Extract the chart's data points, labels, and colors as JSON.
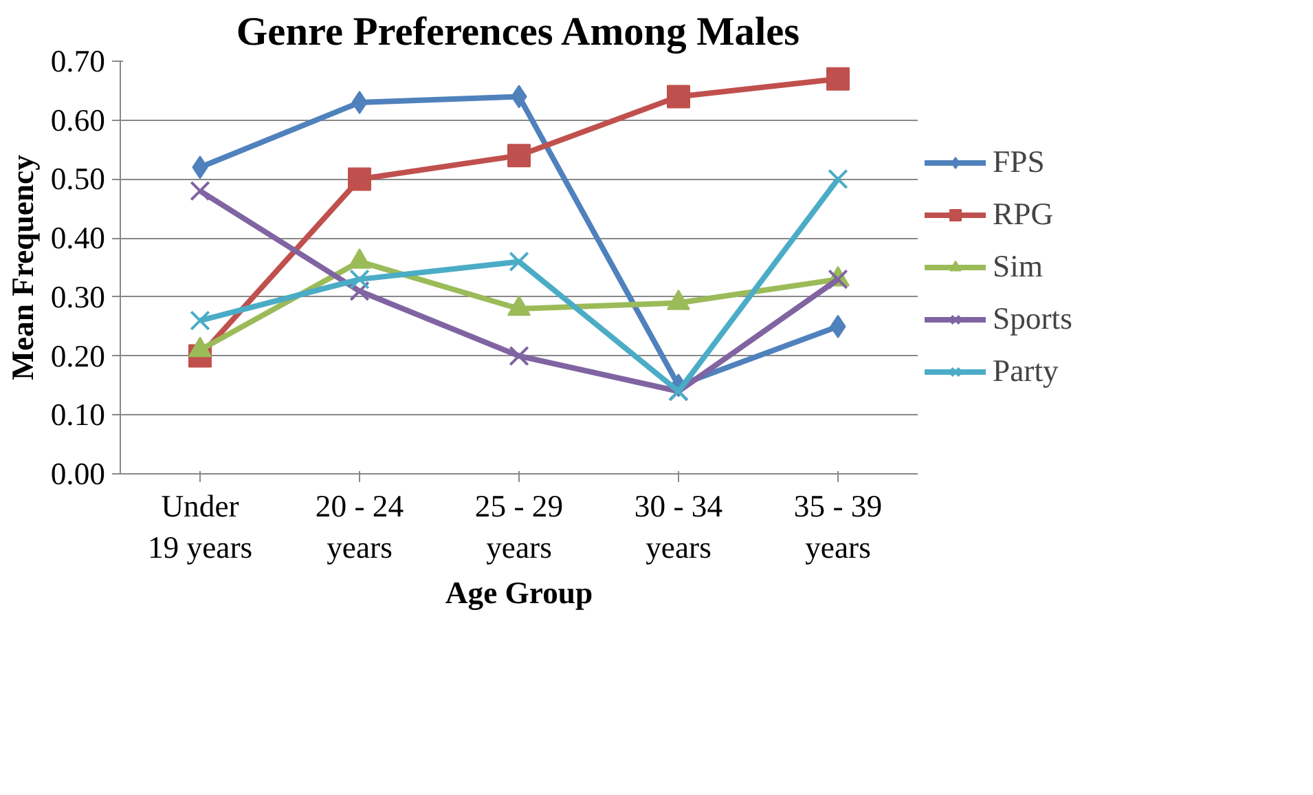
{
  "chart_data": {
    "type": "line",
    "title": "Genre Preferences Among Males",
    "xlabel": "Age Group",
    "ylabel": "Mean Frequency",
    "categories": [
      "Under\n19 years",
      "20 - 24\nyears",
      "25 - 29\nyears",
      "30 - 34\nyears",
      "35 - 39\nyears"
    ],
    "series": [
      {
        "name": "FPS",
        "color": "#4f81bd",
        "marker": "diamond",
        "values": [
          0.52,
          0.63,
          0.64,
          0.15,
          0.25
        ]
      },
      {
        "name": "RPG",
        "color": "#c0504d",
        "marker": "square",
        "values": [
          0.2,
          0.5,
          0.54,
          0.64,
          0.67
        ]
      },
      {
        "name": "Sim",
        "color": "#9bbb59",
        "marker": "triangle",
        "values": [
          0.21,
          0.36,
          0.28,
          0.29,
          0.33
        ]
      },
      {
        "name": "Sports",
        "color": "#8064a2",
        "marker": "cross",
        "values": [
          0.48,
          0.31,
          0.2,
          0.14,
          0.33
        ]
      },
      {
        "name": "Party",
        "color": "#4bacc6",
        "marker": "cross",
        "values": [
          0.26,
          0.33,
          0.36,
          0.14,
          0.5
        ]
      }
    ],
    "ylim": [
      0,
      0.7
    ],
    "yticks": [
      {
        "value": 0,
        "label": "0.00"
      },
      {
        "value": 0.1,
        "label": "0.10"
      },
      {
        "value": 0.2,
        "label": "0.20"
      },
      {
        "value": 0.3,
        "label": "0.30"
      },
      {
        "value": 0.4,
        "label": "0.40"
      },
      {
        "value": 0.5,
        "label": "0.50"
      },
      {
        "value": 0.6,
        "label": "0.60"
      },
      {
        "value": 0.7,
        "label": "0.70"
      }
    ],
    "grid": "y",
    "legend": "right",
    "line_style": "solid"
  }
}
